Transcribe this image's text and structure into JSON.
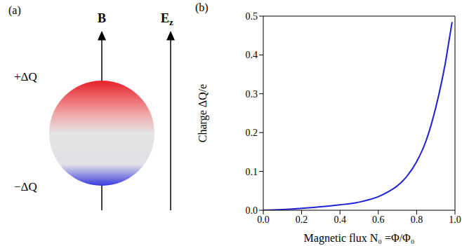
{
  "diagram": {
    "panel": "(a)",
    "field_left": "B",
    "field_right": {
      "text": "E",
      "subscript": "z"
    },
    "charge_top": "+ΔQ",
    "charge_bottom": "−ΔQ"
  },
  "chart_data": {
    "type": "line",
    "panel": "(b)",
    "xlabel": "Magnetic flux N₀ =Φ/Φ₀",
    "ylabel": "Charge ΔQ/e",
    "x": [
      0,
      0.1,
      0.2,
      0.3,
      0.4,
      0.5,
      0.55,
      0.6,
      0.65,
      0.7,
      0.75,
      0.8,
      0.85,
      0.9,
      0.93,
      0.95,
      0.97,
      0.985
    ],
    "values": [
      0,
      0.002,
      0.005,
      0.009,
      0.014,
      0.021,
      0.027,
      0.035,
      0.047,
      0.063,
      0.088,
      0.125,
      0.18,
      0.265,
      0.33,
      0.38,
      0.44,
      0.485
    ],
    "color": "#1f1fd6",
    "xlim": [
      0,
      1
    ],
    "ylim": [
      0,
      0.5
    ],
    "xticks": [
      {
        "value": 0,
        "label": "0.0"
      },
      0.2,
      0.4,
      0.6,
      0.8,
      {
        "value": 1,
        "label": "1.0"
      }
    ],
    "yticks": [
      {
        "value": 0,
        "label": "0.0"
      },
      0.1,
      0.2,
      0.3,
      0.4,
      0.5
    ],
    "grid": false
  }
}
